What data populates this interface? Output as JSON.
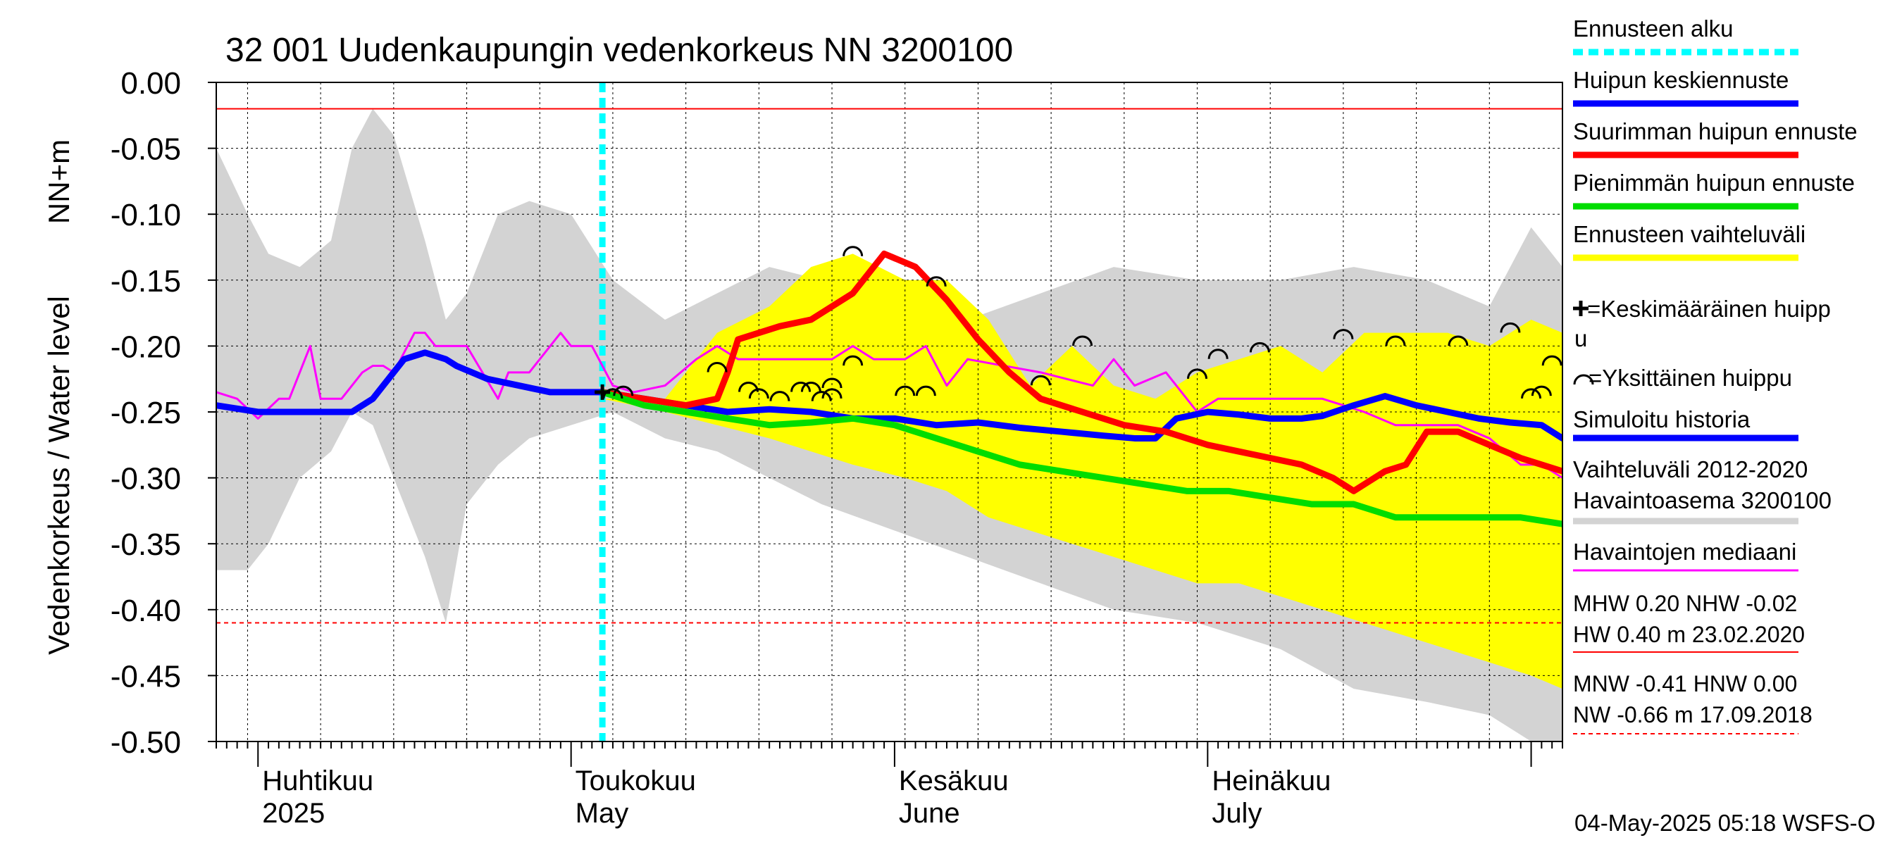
{
  "chart_data": {
    "type": "line",
    "title": "32 001 Uudenkaupungin vedenkorkeus NN 3200100",
    "ylabel_left": "Vedenkorkeus / Water level",
    "ylabel_unit": "NN+m",
    "ylim": [
      -0.5,
      0.0
    ],
    "yticks": [
      "0.00",
      "-0.05",
      "-0.10",
      "-0.15",
      "-0.20",
      "-0.25",
      "-0.30",
      "-0.35",
      "-0.40",
      "-0.45",
      "-0.50"
    ],
    "x_range": [
      "2025-03-28",
      "2025-08-04"
    ],
    "month_labels": [
      {
        "fi": "Huhtikuu",
        "en": "2025",
        "date": "2025-04-01"
      },
      {
        "fi": "Toukokuu",
        "en": "May",
        "date": "2025-05-01"
      },
      {
        "fi": "Kesäkuu",
        "en": "June",
        "date": "2025-06-01"
      },
      {
        "fi": "Heinäkuu",
        "en": "July",
        "date": "2025-07-01"
      }
    ],
    "forecast_start": "2025-05-04",
    "reference_lines": [
      {
        "name": "NHW",
        "value": -0.02,
        "style": "solid",
        "color": "#ff0000"
      },
      {
        "name": "HNW",
        "value": 0.0,
        "style": "dashed",
        "color": "#ff0000"
      },
      {
        "name": "MNW",
        "value": -0.41,
        "style": "dashed",
        "color": "#ff0000"
      }
    ],
    "series": [
      {
        "name": "Vaihteluväli 2012-2020 Havaintoasema 3200100",
        "kind": "band",
        "color": "#d3d3d3",
        "x": [
          "2025-03-28",
          "2025-03-31",
          "2025-04-02",
          "2025-04-05",
          "2025-04-08",
          "2025-04-10",
          "2025-04-12",
          "2025-04-14",
          "2025-04-17",
          "2025-04-19",
          "2025-04-21",
          "2025-04-24",
          "2025-04-27",
          "2025-05-01",
          "2025-05-05",
          "2025-05-10",
          "2025-05-15",
          "2025-05-20",
          "2025-05-25",
          "2025-06-01",
          "2025-06-08",
          "2025-06-15",
          "2025-06-22",
          "2025-06-30",
          "2025-07-08",
          "2025-07-15",
          "2025-07-22",
          "2025-07-28",
          "2025-08-01",
          "2025-08-04"
        ],
        "upper": [
          -0.05,
          -0.1,
          -0.13,
          -0.14,
          -0.12,
          -0.05,
          -0.02,
          -0.04,
          -0.12,
          -0.18,
          -0.16,
          -0.1,
          -0.09,
          -0.1,
          -0.15,
          -0.18,
          -0.16,
          -0.14,
          -0.15,
          -0.16,
          -0.18,
          -0.16,
          -0.14,
          -0.15,
          -0.15,
          -0.14,
          -0.15,
          -0.17,
          -0.11,
          -0.14
        ],
        "lower": [
          -0.37,
          -0.37,
          -0.35,
          -0.3,
          -0.28,
          -0.25,
          -0.26,
          -0.3,
          -0.36,
          -0.41,
          -0.32,
          -0.29,
          -0.27,
          -0.26,
          -0.25,
          -0.27,
          -0.28,
          -0.3,
          -0.32,
          -0.34,
          -0.36,
          -0.38,
          -0.4,
          -0.41,
          -0.43,
          -0.46,
          -0.47,
          -0.48,
          -0.5,
          -0.5
        ]
      },
      {
        "name": "Ennusteen vaihteluväli",
        "kind": "band",
        "color": "#ffff00",
        "x": [
          "2025-05-04",
          "2025-05-10",
          "2025-05-15",
          "2025-05-20",
          "2025-05-24",
          "2025-05-28",
          "2025-06-02",
          "2025-06-06",
          "2025-06-10",
          "2025-06-14",
          "2025-06-18",
          "2025-06-22",
          "2025-06-26",
          "2025-06-30",
          "2025-07-04",
          "2025-07-08",
          "2025-07-12",
          "2025-07-16",
          "2025-07-20",
          "2025-07-24",
          "2025-07-28",
          "2025-08-01",
          "2025-08-04"
        ],
        "upper": [
          -0.24,
          -0.24,
          -0.19,
          -0.17,
          -0.14,
          -0.13,
          -0.15,
          -0.15,
          -0.18,
          -0.23,
          -0.2,
          -0.23,
          -0.24,
          -0.22,
          -0.21,
          -0.2,
          -0.22,
          -0.19,
          -0.19,
          -0.19,
          -0.2,
          -0.18,
          -0.19
        ],
        "lower": [
          -0.24,
          -0.25,
          -0.26,
          -0.27,
          -0.28,
          -0.29,
          -0.3,
          -0.31,
          -0.33,
          -0.34,
          -0.35,
          -0.36,
          -0.37,
          -0.38,
          -0.38,
          -0.39,
          -0.4,
          -0.41,
          -0.42,
          -0.43,
          -0.44,
          -0.45,
          -0.46
        ]
      },
      {
        "name": "Havaintojen mediaani",
        "kind": "line",
        "color": "#ff00ff",
        "width": 3,
        "x": [
          "2025-03-28",
          "2025-03-30",
          "2025-04-01",
          "2025-04-03",
          "2025-04-04",
          "2025-04-06",
          "2025-04-07",
          "2025-04-09",
          "2025-04-11",
          "2025-04-12",
          "2025-04-13",
          "2025-04-14",
          "2025-04-16",
          "2025-04-17",
          "2025-04-18",
          "2025-04-19",
          "2025-04-21",
          "2025-04-24",
          "2025-04-25",
          "2025-04-27",
          "2025-04-28",
          "2025-04-29",
          "2025-04-30",
          "2025-05-01",
          "2025-05-03",
          "2025-05-05",
          "2025-05-07",
          "2025-05-10",
          "2025-05-13",
          "2025-05-15",
          "2025-05-17",
          "2025-05-19",
          "2025-05-22",
          "2025-05-26",
          "2025-05-28",
          "2025-05-30",
          "2025-06-02",
          "2025-06-04",
          "2025-06-06",
          "2025-06-08",
          "2025-06-15",
          "2025-06-20",
          "2025-06-22",
          "2025-06-24",
          "2025-06-27",
          "2025-06-30",
          "2025-07-02",
          "2025-07-05",
          "2025-07-08",
          "2025-07-12",
          "2025-07-16",
          "2025-07-19",
          "2025-07-22",
          "2025-07-25",
          "2025-07-28",
          "2025-07-31",
          "2025-08-02",
          "2025-08-04"
        ],
        "y": [
          -0.235,
          -0.24,
          -0.255,
          -0.24,
          -0.24,
          -0.2,
          -0.24,
          -0.24,
          -0.22,
          -0.215,
          -0.215,
          -0.22,
          -0.19,
          -0.19,
          -0.2,
          -0.2,
          -0.2,
          -0.24,
          -0.22,
          -0.22,
          -0.21,
          -0.2,
          -0.19,
          -0.2,
          -0.2,
          -0.23,
          -0.235,
          -0.23,
          -0.21,
          -0.2,
          -0.21,
          -0.21,
          -0.21,
          -0.21,
          -0.2,
          -0.21,
          -0.21,
          -0.2,
          -0.23,
          -0.21,
          -0.22,
          -0.23,
          -0.21,
          -0.23,
          -0.22,
          -0.25,
          -0.24,
          -0.24,
          -0.24,
          -0.24,
          -0.25,
          -0.26,
          -0.26,
          -0.26,
          -0.27,
          -0.29,
          -0.29,
          -0.3
        ]
      },
      {
        "name": "Simuloitu historia",
        "kind": "line",
        "color": "#0000ff",
        "width": 9,
        "x": [
          "2025-03-28",
          "2025-04-01",
          "2025-04-05",
          "2025-04-08",
          "2025-04-10",
          "2025-04-12",
          "2025-04-14",
          "2025-04-15",
          "2025-04-17",
          "2025-04-19",
          "2025-04-20",
          "2025-04-23",
          "2025-04-26",
          "2025-04-29",
          "2025-05-02",
          "2025-05-04"
        ],
        "y": [
          -0.245,
          -0.25,
          -0.25,
          -0.25,
          -0.25,
          -0.24,
          -0.22,
          -0.21,
          -0.205,
          -0.21,
          -0.215,
          -0.225,
          -0.23,
          -0.235,
          -0.235,
          -0.235
        ]
      },
      {
        "name": "Huipun keskiennuste",
        "kind": "line",
        "color": "#0000ff",
        "width": 9,
        "x": [
          "2025-05-04",
          "2025-05-08",
          "2025-05-12",
          "2025-05-16",
          "2025-05-20",
          "2025-05-24",
          "2025-05-28",
          "2025-06-01",
          "2025-06-05",
          "2025-06-09",
          "2025-06-13",
          "2025-06-17",
          "2025-06-21",
          "2025-06-24",
          "2025-06-26",
          "2025-06-28",
          "2025-07-01",
          "2025-07-04",
          "2025-07-07",
          "2025-07-10",
          "2025-07-12",
          "2025-07-15",
          "2025-07-18",
          "2025-07-21",
          "2025-07-24",
          "2025-07-27",
          "2025-07-30",
          "2025-08-02",
          "2025-08-04"
        ],
        "y": [
          -0.235,
          -0.24,
          -0.245,
          -0.25,
          -0.248,
          -0.25,
          -0.255,
          -0.255,
          -0.26,
          -0.258,
          -0.262,
          -0.265,
          -0.268,
          -0.27,
          -0.27,
          -0.255,
          -0.25,
          -0.252,
          -0.255,
          -0.255,
          -0.253,
          -0.245,
          -0.238,
          -0.245,
          -0.25,
          -0.255,
          -0.258,
          -0.26,
          -0.27
        ]
      },
      {
        "name": "Suurimman huipun ennuste",
        "kind": "line",
        "color": "#ff0000",
        "width": 9,
        "x": [
          "2025-05-04",
          "2025-05-08",
          "2025-05-12",
          "2025-05-15",
          "2025-05-16",
          "2025-05-17",
          "2025-05-19",
          "2025-05-21",
          "2025-05-24",
          "2025-05-26",
          "2025-05-28",
          "2025-05-29",
          "2025-05-31",
          "2025-06-03",
          "2025-06-06",
          "2025-06-09",
          "2025-06-12",
          "2025-06-15",
          "2025-06-19",
          "2025-06-23",
          "2025-06-27",
          "2025-07-01",
          "2025-07-04",
          "2025-07-07",
          "2025-07-10",
          "2025-07-13",
          "2025-07-15",
          "2025-07-18",
          "2025-07-20",
          "2025-07-22",
          "2025-07-25",
          "2025-07-28",
          "2025-07-31",
          "2025-08-04"
        ],
        "y": [
          -0.235,
          -0.24,
          -0.245,
          -0.24,
          -0.22,
          -0.195,
          -0.19,
          -0.185,
          -0.18,
          -0.17,
          -0.16,
          -0.15,
          -0.13,
          -0.14,
          -0.165,
          -0.195,
          -0.22,
          -0.24,
          -0.25,
          -0.26,
          -0.265,
          -0.275,
          -0.28,
          -0.285,
          -0.29,
          -0.3,
          -0.31,
          -0.295,
          -0.29,
          -0.265,
          -0.265,
          -0.275,
          -0.285,
          -0.295
        ]
      },
      {
        "name": "Pienimmän huipun ennuste",
        "kind": "line",
        "color": "#00dd00",
        "width": 9,
        "x": [
          "2025-05-04",
          "2025-05-08",
          "2025-05-12",
          "2025-05-16",
          "2025-05-20",
          "2025-05-24",
          "2025-05-28",
          "2025-06-01",
          "2025-06-05",
          "2025-06-09",
          "2025-06-13",
          "2025-06-17",
          "2025-06-21",
          "2025-06-25",
          "2025-06-29",
          "2025-07-03",
          "2025-07-07",
          "2025-07-11",
          "2025-07-15",
          "2025-07-19",
          "2025-07-23",
          "2025-07-27",
          "2025-07-31",
          "2025-08-04"
        ],
        "y": [
          -0.235,
          -0.245,
          -0.25,
          -0.255,
          -0.26,
          -0.258,
          -0.255,
          -0.26,
          -0.27,
          -0.28,
          -0.29,
          -0.295,
          -0.3,
          -0.305,
          -0.31,
          -0.31,
          -0.315,
          -0.32,
          -0.32,
          -0.33,
          -0.33,
          -0.33,
          -0.33,
          -0.335
        ]
      }
    ],
    "mean_peak_markers": [
      {
        "x": "2025-05-04",
        "y": -0.235
      }
    ],
    "single_peak_markers": [
      {
        "x": "2025-05-05",
        "y": -0.235
      },
      {
        "x": "2025-05-06",
        "y": -0.233
      },
      {
        "x": "2025-05-15",
        "y": -0.215
      },
      {
        "x": "2025-05-18",
        "y": -0.23
      },
      {
        "x": "2025-05-19",
        "y": -0.235
      },
      {
        "x": "2025-05-21",
        "y": -0.237
      },
      {
        "x": "2025-05-23",
        "y": -0.23
      },
      {
        "x": "2025-05-24",
        "y": -0.23
      },
      {
        "x": "2025-05-25",
        "y": -0.237
      },
      {
        "x": "2025-05-26",
        "y": -0.227
      },
      {
        "x": "2025-05-26",
        "y": -0.235
      },
      {
        "x": "2025-05-28",
        "y": -0.21
      },
      {
        "x": "2025-05-28",
        "y": -0.127
      },
      {
        "x": "2025-06-02",
        "y": -0.233
      },
      {
        "x": "2025-06-04",
        "y": -0.233
      },
      {
        "x": "2025-06-05",
        "y": -0.15
      },
      {
        "x": "2025-06-15",
        "y": -0.225
      },
      {
        "x": "2025-06-19",
        "y": -0.195
      },
      {
        "x": "2025-06-30",
        "y": -0.22
      },
      {
        "x": "2025-07-02",
        "y": -0.205
      },
      {
        "x": "2025-07-06",
        "y": -0.2
      },
      {
        "x": "2025-07-14",
        "y": -0.19
      },
      {
        "x": "2025-07-19",
        "y": -0.195
      },
      {
        "x": "2025-07-25",
        "y": -0.195
      },
      {
        "x": "2025-07-30",
        "y": -0.185
      },
      {
        "x": "2025-08-01",
        "y": -0.235
      },
      {
        "x": "2025-08-02",
        "y": -0.233
      },
      {
        "x": "2025-08-03",
        "y": -0.21
      }
    ]
  },
  "legend": {
    "items": [
      {
        "label": "Ennusteen alku",
        "color": "#00ffff",
        "style": "dashed"
      },
      {
        "label": "Huipun keskiennuste",
        "color": "#0000ff",
        "style": "solid"
      },
      {
        "label": "Suurimman huipun ennuste",
        "color": "#ff0000",
        "style": "solid"
      },
      {
        "label": "Pienimmän huipun ennuste",
        "color": "#00dd00",
        "style": "solid"
      },
      {
        "label": "Ennusteen vaihteluväli",
        "color": "#ffff00",
        "style": "solid"
      }
    ],
    "mean_peak_line1": "=Keskimääräinen huipp",
    "mean_peak_line2": "u",
    "single_peak": "=Yksittäinen huippu",
    "sim_history": {
      "label": "Simuloitu historia",
      "color": "#0000ff"
    },
    "range_line1": "Vaihteluväli 2012-2020",
    "range_line2": " Havaintoasema 3200100",
    "range_color": "#d3d3d3",
    "median": {
      "label": "Havaintojen mediaani",
      "color": "#ff00ff"
    },
    "stats": {
      "mhw_line": "MHW   0.20 NHW  -0.02",
      "hw_line": "HW   0.40 m 23.02.2020",
      "mnw_line": "MNW  -0.41 HNW   0.00",
      "nw_line": "NW  -0.66 m 17.09.2018"
    }
  },
  "footer": {
    "timestamp": "04-May-2025 05:18 WSFS-O"
  }
}
